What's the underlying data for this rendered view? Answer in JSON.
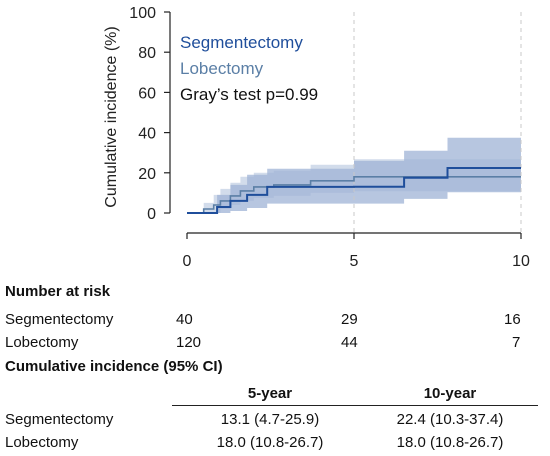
{
  "chart_data": {
    "type": "line",
    "title": "",
    "xlabel": "",
    "ylabel": "Cumulative incidence (%)",
    "xlim": [
      0,
      10
    ],
    "ylim": [
      0,
      100
    ],
    "xticks": [
      "0",
      "5",
      "10"
    ],
    "yticks": [
      "0",
      "20",
      "40",
      "60",
      "80",
      "100"
    ],
    "vlines_dashed_at": [
      5,
      10
    ],
    "annotation": "Gray’s test p=0.99",
    "series": [
      {
        "name": "Segmentectomy",
        "color": "#1f4e9b",
        "step": [
          [
            0,
            0
          ],
          [
            0.9,
            0
          ],
          [
            0.9,
            3
          ],
          [
            1.3,
            3
          ],
          [
            1.3,
            6
          ],
          [
            1.8,
            6
          ],
          [
            1.8,
            9
          ],
          [
            2.4,
            9
          ],
          [
            2.4,
            13
          ],
          [
            5.0,
            13
          ],
          [
            5.0,
            13.1
          ],
          [
            6.5,
            13.1
          ],
          [
            6.5,
            17.5
          ],
          [
            7.8,
            17.5
          ],
          [
            7.8,
            22.4
          ],
          [
            10,
            22.4
          ]
        ],
        "ci_upper": [
          [
            0,
            0
          ],
          [
            0.9,
            0
          ],
          [
            0.9,
            9
          ],
          [
            1.3,
            9
          ],
          [
            1.3,
            14
          ],
          [
            1.8,
            14
          ],
          [
            1.8,
            19
          ],
          [
            2.4,
            19
          ],
          [
            2.4,
            22
          ],
          [
            5.0,
            22
          ],
          [
            5.0,
            25.9
          ],
          [
            6.5,
            25.9
          ],
          [
            6.5,
            31
          ],
          [
            7.8,
            31
          ],
          [
            7.8,
            37.4
          ],
          [
            10,
            37.4
          ]
        ],
        "ci_lower": [
          [
            0,
            0
          ],
          [
            0.9,
            0
          ],
          [
            0.9,
            0
          ],
          [
            1.3,
            0
          ],
          [
            1.3,
            1
          ],
          [
            1.8,
            1
          ],
          [
            1.8,
            2.5
          ],
          [
            2.4,
            2.5
          ],
          [
            2.4,
            4.7
          ],
          [
            6.5,
            4.7
          ],
          [
            6.5,
            7
          ],
          [
            7.8,
            7
          ],
          [
            7.8,
            10.3
          ],
          [
            10,
            10.3
          ]
        ]
      },
      {
        "name": "Lobectomy",
        "color": "#5b7fa6",
        "step": [
          [
            0,
            0
          ],
          [
            0.5,
            0
          ],
          [
            0.5,
            2
          ],
          [
            0.8,
            2
          ],
          [
            0.8,
            4
          ],
          [
            1.0,
            4
          ],
          [
            1.0,
            6
          ],
          [
            1.3,
            6
          ],
          [
            1.3,
            8.5
          ],
          [
            1.6,
            8.5
          ],
          [
            1.6,
            11
          ],
          [
            2.0,
            11
          ],
          [
            2.0,
            13
          ],
          [
            2.6,
            13
          ],
          [
            2.6,
            14
          ],
          [
            3.7,
            14
          ],
          [
            3.7,
            16
          ],
          [
            5.0,
            16
          ],
          [
            5.0,
            18
          ],
          [
            10,
            18
          ]
        ],
        "ci_upper": [
          [
            0,
            0
          ],
          [
            0.5,
            0
          ],
          [
            0.5,
            5
          ],
          [
            0.8,
            5
          ],
          [
            0.8,
            9
          ],
          [
            1.0,
            9
          ],
          [
            1.0,
            12
          ],
          [
            1.3,
            12
          ],
          [
            1.3,
            15
          ],
          [
            1.6,
            15
          ],
          [
            1.6,
            18
          ],
          [
            2.0,
            18
          ],
          [
            2.0,
            20
          ],
          [
            2.6,
            20
          ],
          [
            2.6,
            21
          ],
          [
            3.7,
            21
          ],
          [
            3.7,
            24
          ],
          [
            5.0,
            24
          ],
          [
            5.0,
            26.7
          ],
          [
            10,
            26.7
          ]
        ],
        "ci_lower": [
          [
            0,
            0
          ],
          [
            0.5,
            0
          ],
          [
            0.5,
            0
          ],
          [
            1.0,
            0
          ],
          [
            1.0,
            2
          ],
          [
            1.3,
            2
          ],
          [
            1.3,
            4
          ],
          [
            1.6,
            4
          ],
          [
            1.6,
            6
          ],
          [
            2.0,
            6
          ],
          [
            2.0,
            7.5
          ],
          [
            2.6,
            7.5
          ],
          [
            2.6,
            8.5
          ],
          [
            3.7,
            8.5
          ],
          [
            3.7,
            10
          ],
          [
            5.0,
            10
          ],
          [
            5.0,
            10.8
          ],
          [
            10,
            10.8
          ]
        ]
      }
    ]
  },
  "number_at_risk": {
    "heading": "Number at risk",
    "rows": [
      {
        "label": "Segmentectomy",
        "values": [
          "40",
          "29",
          "16"
        ]
      },
      {
        "label": "Lobectomy",
        "values": [
          "120",
          "44",
          "7"
        ]
      }
    ]
  },
  "cumulative_incidence_table": {
    "heading": "Cumulative incidence (95% CI)",
    "columns": [
      "5-year",
      "10-year"
    ],
    "rows": [
      {
        "label": "Segmentectomy",
        "values": [
          "13.1 (4.7-25.9)",
          "22.4 (10.3-37.4)"
        ]
      },
      {
        "label": "Lobectomy",
        "values": [
          "18.0 (10.8-26.7)",
          "18.0 (10.8-26.7)"
        ]
      }
    ]
  },
  "colors": {
    "segmentectomy_band": "#9fb3d6",
    "lobectomy_band": "#c3d0e4",
    "axis": "#222222"
  }
}
